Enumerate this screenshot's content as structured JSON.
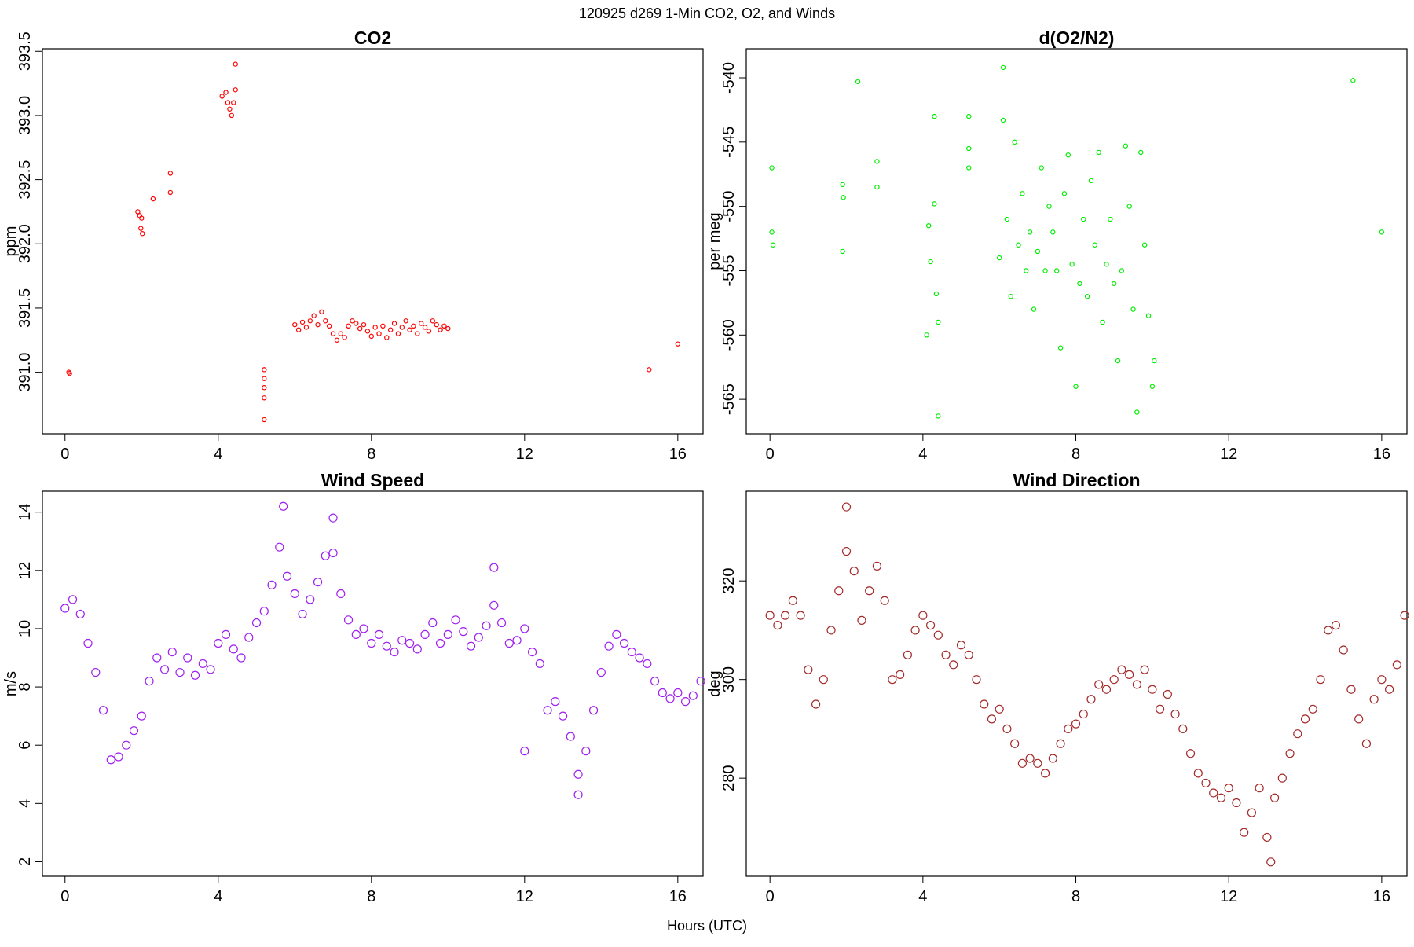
{
  "title": "120925   d269   1-Min CO2, O2, and Winds",
  "xlabel": "Hours (UTC)",
  "chart_data": [
    {
      "type": "scatter",
      "title": "CO2",
      "ylabel": "ppm",
      "color": "#ff0000",
      "xlim": [
        -0.59,
        16.66
      ],
      "xticks": [
        0,
        4,
        8,
        12,
        16
      ],
      "ylim": [
        390.52,
        393.52
      ],
      "yticks": [
        {
          "value": 391,
          "label": "391.0"
        },
        391.5,
        {
          "value": 392,
          "label": "392.0"
        },
        392.5,
        {
          "value": 393,
          "label": "393.0"
        },
        393.5
      ],
      "x": [
        0.1,
        0.12,
        1.9,
        1.95,
        2.0,
        1.98,
        2.02,
        2.3,
        2.75,
        2.75,
        4.1,
        4.2,
        4.25,
        4.3,
        4.35,
        4.4,
        4.45,
        4.45,
        5.2,
        5.2,
        5.2,
        5.2,
        5.2,
        6.0,
        6.1,
        6.2,
        6.3,
        6.4,
        6.5,
        6.6,
        6.7,
        6.8,
        6.9,
        7.0,
        7.1,
        7.2,
        7.3,
        7.4,
        7.5,
        7.6,
        7.7,
        7.8,
        7.9,
        8.0,
        8.1,
        8.2,
        8.3,
        8.4,
        8.5,
        8.6,
        8.7,
        8.8,
        8.9,
        9.0,
        9.1,
        9.2,
        9.3,
        9.4,
        9.5,
        9.6,
        9.7,
        9.8,
        9.9,
        10.0,
        15.25,
        16.0
      ],
      "values": [
        391.0,
        390.99,
        392.25,
        392.22,
        392.2,
        392.12,
        392.08,
        392.35,
        392.55,
        392.4,
        393.15,
        393.18,
        393.1,
        393.05,
        393.0,
        393.1,
        393.2,
        393.4,
        391.02,
        390.95,
        390.88,
        390.8,
        390.63,
        391.37,
        391.33,
        391.39,
        391.35,
        391.4,
        391.44,
        391.37,
        391.47,
        391.4,
        391.36,
        391.3,
        391.25,
        391.3,
        391.27,
        391.36,
        391.4,
        391.38,
        391.34,
        391.37,
        391.32,
        391.28,
        391.35,
        391.3,
        391.36,
        391.27,
        391.33,
        391.38,
        391.3,
        391.35,
        391.4,
        391.33,
        391.36,
        391.3,
        391.38,
        391.35,
        391.32,
        391.4,
        391.37,
        391.33,
        391.36,
        391.34,
        391.02,
        391.22
      ]
    },
    {
      "type": "scatter",
      "title": "d(O2/N2)",
      "ylabel": "per meg",
      "color": "#00ee00",
      "xlim": [
        -0.62,
        16.66
      ],
      "xticks": [
        0,
        4,
        8,
        12,
        16
      ],
      "ylim": [
        -567.68,
        -537.74
      ],
      "yticks": [
        -565,
        -560,
        -555,
        -550,
        -545,
        -540
      ],
      "x": [
        0.05,
        0.05,
        0.08,
        1.9,
        1.92,
        1.9,
        2.3,
        2.8,
        2.8,
        4.1,
        4.15,
        4.2,
        4.3,
        4.3,
        4.35,
        4.4,
        4.4,
        5.2,
        5.2,
        5.2,
        6.1,
        6.1,
        6.0,
        6.2,
        6.3,
        6.4,
        6.5,
        6.6,
        6.7,
        6.8,
        6.9,
        7.0,
        7.1,
        7.2,
        7.3,
        7.4,
        7.5,
        7.6,
        7.7,
        7.8,
        7.9,
        8.0,
        8.1,
        8.2,
        8.3,
        8.4,
        8.5,
        8.6,
        8.7,
        8.8,
        8.9,
        9.0,
        9.1,
        9.2,
        9.3,
        9.4,
        9.5,
        9.6,
        9.7,
        9.8,
        9.9,
        10.0,
        10.05,
        15.25,
        16.0
      ],
      "values": [
        -552,
        -547,
        -553,
        -548.3,
        -549.3,
        -553.5,
        -540.3,
        -546.5,
        -548.5,
        -560,
        -551.5,
        -554.3,
        -543,
        -549.8,
        -556.8,
        -559,
        -566.3,
        -543,
        -545.5,
        -547,
        -539.2,
        -543.3,
        -554,
        -551,
        -557,
        -545,
        -553,
        -549,
        -555,
        -552,
        -558,
        -553.5,
        -547,
        -555,
        -550,
        -552,
        -555,
        -561,
        -549,
        -546,
        -554.5,
        -564,
        -556,
        -551,
        -557,
        -548,
        -553,
        -545.8,
        -559,
        -554.5,
        -551,
        -556,
        -562,
        -555,
        -545.3,
        -550,
        -558,
        -566,
        -545.8,
        -553,
        -558.5,
        -564,
        -562,
        -540.2,
        -552
      ]
    },
    {
      "type": "scatter",
      "title": "Wind Speed",
      "ylabel": "m/s",
      "color": "#a020f0",
      "xlim": [
        -0.59,
        16.66
      ],
      "xticks": [
        0,
        4,
        8,
        12,
        16
      ],
      "ylim": [
        1.5,
        14.72
      ],
      "yticks": [
        2,
        4,
        6,
        8,
        10,
        12,
        14
      ],
      "x": [
        0.0,
        0.2,
        0.4,
        0.6,
        0.8,
        1.0,
        1.2,
        1.4,
        1.6,
        1.8,
        2.0,
        2.2,
        2.4,
        2.6,
        2.8,
        3.0,
        3.2,
        3.4,
        3.6,
        3.8,
        4.0,
        4.2,
        4.4,
        4.6,
        4.8,
        5.0,
        5.2,
        5.4,
        5.6,
        5.8,
        6.0,
        6.2,
        6.4,
        6.6,
        6.8,
        7.0,
        7.2,
        7.4,
        7.6,
        7.8,
        8.0,
        8.2,
        8.4,
        8.6,
        8.8,
        9.0,
        9.2,
        9.4,
        9.6,
        9.8,
        10.0,
        10.2,
        10.4,
        10.6,
        10.8,
        11.0,
        11.2,
        11.4,
        11.6,
        11.8,
        12.0,
        12.2,
        12.4,
        12.6,
        12.8,
        13.0,
        13.2,
        13.4,
        13.6,
        13.8,
        14.0,
        14.2,
        14.4,
        14.6,
        14.8,
        15.0,
        15.2,
        15.4,
        15.6,
        15.8,
        16.0,
        16.2,
        16.4,
        16.6,
        5.7,
        7.0,
        11.2,
        12.0,
        13.4
      ],
      "values": [
        10.7,
        11.0,
        10.5,
        9.5,
        8.5,
        7.2,
        5.5,
        5.6,
        6.0,
        6.5,
        7.0,
        8.2,
        9.0,
        8.6,
        9.2,
        8.5,
        9.0,
        8.4,
        8.8,
        8.6,
        9.5,
        9.8,
        9.3,
        9.0,
        9.7,
        10.2,
        10.6,
        11.5,
        12.8,
        11.8,
        11.2,
        10.5,
        11.0,
        11.6,
        12.5,
        12.6,
        11.2,
        10.3,
        9.8,
        10.0,
        9.5,
        9.8,
        9.4,
        9.2,
        9.6,
        9.5,
        9.3,
        9.8,
        10.2,
        9.5,
        9.8,
        10.3,
        9.9,
        9.4,
        9.7,
        10.1,
        10.8,
        10.2,
        9.5,
        9.6,
        10.0,
        9.2,
        8.8,
        7.2,
        7.5,
        7.0,
        6.3,
        5.0,
        5.8,
        7.2,
        8.5,
        9.4,
        9.8,
        9.5,
        9.2,
        9.0,
        8.8,
        8.2,
        7.8,
        7.6,
        7.8,
        7.5,
        7.7,
        8.2,
        14.2,
        13.8,
        12.1,
        5.8,
        4.3
      ]
    },
    {
      "type": "scatter",
      "title": "Wind Direction",
      "ylabel": "deg",
      "color": "#a52a2a",
      "xlim": [
        -0.62,
        16.66
      ],
      "xticks": [
        0,
        4,
        8,
        12,
        16
      ],
      "ylim": [
        260.1,
        338.2
      ],
      "yticks": [
        280,
        300,
        320
      ],
      "x": [
        0.0,
        0.2,
        0.4,
        0.6,
        0.8,
        1.0,
        1.2,
        1.4,
        1.6,
        1.8,
        2.0,
        2.2,
        2.4,
        2.6,
        2.8,
        3.0,
        3.2,
        3.4,
        3.6,
        3.8,
        4.0,
        4.2,
        4.4,
        4.6,
        4.8,
        5.0,
        5.2,
        5.4,
        5.6,
        5.8,
        6.0,
        6.2,
        6.4,
        6.6,
        6.8,
        7.0,
        7.2,
        7.4,
        7.6,
        7.8,
        8.0,
        8.2,
        8.4,
        8.6,
        8.8,
        9.0,
        9.2,
        9.4,
        9.6,
        9.8,
        10.0,
        10.2,
        10.4,
        10.6,
        10.8,
        11.0,
        11.2,
        11.4,
        11.6,
        11.8,
        12.0,
        12.2,
        12.4,
        12.6,
        12.8,
        13.0,
        13.2,
        13.4,
        13.6,
        13.8,
        14.0,
        14.2,
        14.4,
        14.6,
        14.8,
        15.0,
        15.2,
        15.4,
        15.6,
        15.8,
        16.0,
        16.2,
        16.4,
        16.6,
        2.0,
        13.1
      ],
      "values": [
        313,
        311,
        313,
        316,
        313,
        302,
        295,
        300,
        310,
        318,
        326,
        322,
        312,
        318,
        323,
        316,
        300,
        301,
        305,
        310,
        313,
        311,
        309,
        305,
        303,
        307,
        305,
        300,
        295,
        292,
        294,
        290,
        287,
        283,
        284,
        283,
        281,
        284,
        287,
        290,
        291,
        293,
        296,
        299,
        298,
        300,
        302,
        301,
        299,
        302,
        298,
        294,
        297,
        293,
        290,
        285,
        281,
        279,
        277,
        276,
        278,
        275,
        269,
        273,
        278,
        268,
        276,
        280,
        285,
        289,
        292,
        294,
        300,
        310,
        311,
        306,
        298,
        292,
        287,
        296,
        300,
        298,
        303,
        313,
        335,
        263
      ]
    }
  ]
}
